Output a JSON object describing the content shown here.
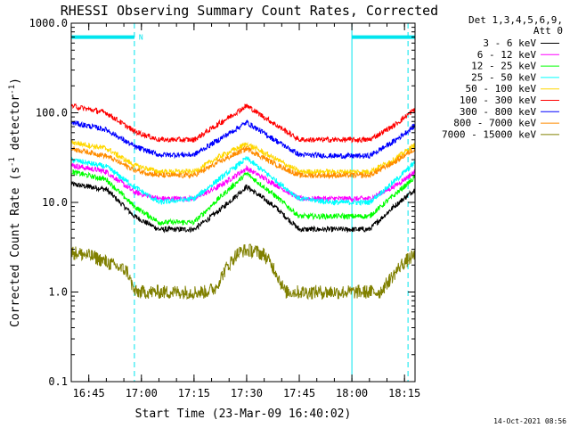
{
  "chart_data": {
    "type": "line",
    "title": "RHESSI Observing Summary Count Rates, Corrected",
    "xlabel": "Start Time (23-Mar-09 16:40:02)",
    "ylabel": "Corrected Count Rate (s-1 detector-1)",
    "ylabel_parts": {
      "main": "Corrected Count Rate (s",
      "sup1": "-1",
      "mid": " detector",
      "sup2": "-1",
      "end": ")"
    },
    "yscale": "log",
    "ylim": [
      0.1,
      1000
    ],
    "xlim_minutes": [
      0,
      98
    ],
    "xticks": [
      {
        "m": 5,
        "label": "16:45"
      },
      {
        "m": 20,
        "label": "17:00"
      },
      {
        "m": 35,
        "label": "17:15"
      },
      {
        "m": 50,
        "label": "17:30"
      },
      {
        "m": 65,
        "label": "17:45"
      },
      {
        "m": 80,
        "label": "18:00"
      },
      {
        "m": 95,
        "label": "18:15"
      }
    ],
    "yticks": [
      {
        "v": 0.1,
        "label": "0.1"
      },
      {
        "v": 1,
        "label": "1.0"
      },
      {
        "v": 10,
        "label": "10.0"
      },
      {
        "v": 100,
        "label": "100.0"
      },
      {
        "v": 1000,
        "label": "1000.0"
      }
    ],
    "legend_header": [
      "Det 1,3,4,5,6,9,",
      "Att 0"
    ],
    "legend_placement": "right",
    "timestamp": "14-Oct-2021 08:56",
    "series": [
      {
        "name": "3 - 6 keV",
        "color": "#000000",
        "x": [
          0,
          10,
          18,
          25,
          35,
          42,
          50,
          58,
          65,
          75,
          85,
          92,
          98
        ],
        "y": [
          16,
          14,
          7,
          5,
          5,
          8,
          15,
          9,
          5,
          5,
          5,
          9,
          14
        ]
      },
      {
        "name": "6 - 12 keV",
        "color": "#ff00ff",
        "x": [
          0,
          10,
          18,
          25,
          35,
          42,
          50,
          58,
          65,
          75,
          85,
          92,
          98
        ],
        "y": [
          26,
          22,
          13,
          11,
          11,
          15,
          24,
          16,
          11,
          11,
          11,
          15,
          22
        ]
      },
      {
        "name": "12 - 25 keV",
        "color": "#00ff00",
        "x": [
          0,
          10,
          18,
          25,
          35,
          42,
          50,
          58,
          65,
          75,
          85,
          92,
          98
        ],
        "y": [
          22,
          18,
          9,
          6,
          6,
          11,
          21,
          12,
          7,
          7,
          7,
          12,
          19
        ]
      },
      {
        "name": "25 - 50 keV",
        "color": "#00ffff",
        "x": [
          0,
          10,
          18,
          25,
          35,
          42,
          50,
          58,
          65,
          75,
          85,
          92,
          98
        ],
        "y": [
          30,
          25,
          15,
          10,
          11,
          18,
          31,
          18,
          11,
          10,
          10,
          17,
          28
        ]
      },
      {
        "name": "50 - 100 keV",
        "color": "#ffd700",
        "x": [
          0,
          10,
          18,
          25,
          35,
          42,
          50,
          58,
          65,
          75,
          85,
          92,
          98
        ],
        "y": [
          47,
          40,
          26,
          22,
          22,
          32,
          45,
          31,
          22,
          22,
          22,
          30,
          44
        ]
      },
      {
        "name": "100 - 300 keV",
        "color": "#ff0000",
        "x": [
          0,
          10,
          18,
          25,
          35,
          42,
          50,
          58,
          65,
          75,
          85,
          92,
          98
        ],
        "y": [
          120,
          100,
          62,
          50,
          50,
          75,
          120,
          75,
          50,
          50,
          50,
          72,
          110
        ]
      },
      {
        "name": "300 - 800 keV",
        "color": "#0000ff",
        "x": [
          0,
          10,
          18,
          25,
          35,
          42,
          50,
          58,
          65,
          75,
          85,
          92,
          98
        ],
        "y": [
          78,
          65,
          42,
          34,
          34,
          50,
          78,
          50,
          34,
          33,
          33,
          48,
          72
        ]
      },
      {
        "name": "800 - 7000 keV",
        "color": "#ff8c00",
        "x": [
          0,
          10,
          18,
          25,
          35,
          42,
          50,
          58,
          65,
          75,
          85,
          92,
          98
        ],
        "y": [
          40,
          33,
          23,
          20,
          20,
          28,
          40,
          27,
          20,
          20,
          20,
          28,
          40
        ]
      },
      {
        "name": "7000 - 15000 keV",
        "color": "#808000",
        "x": [
          0,
          6,
          12,
          16,
          18,
          38,
          41,
          44,
          47,
          49,
          52,
          55,
          58,
          61,
          88,
          91,
          94,
          98
        ],
        "y": [
          2.8,
          2.5,
          2.0,
          1.7,
          1.0,
          1.0,
          1.1,
          1.8,
          2.6,
          2.9,
          2.9,
          2.6,
          1.8,
          1.0,
          1.0,
          1.4,
          2.0,
          2.6
        ]
      }
    ],
    "attenuator_bars": [
      {
        "label": "N",
        "x_start": 0,
        "x_end": 18,
        "value": 700
      },
      {
        "label": "",
        "x_start": 80,
        "x_end": 98,
        "value": 700
      }
    ],
    "vertical_markers": [
      {
        "m": 0,
        "style": "dashed"
      },
      {
        "m": 18,
        "style": "dashed"
      },
      {
        "m": 80,
        "style": "solid"
      },
      {
        "m": 96,
        "style": "dashed"
      }
    ]
  }
}
